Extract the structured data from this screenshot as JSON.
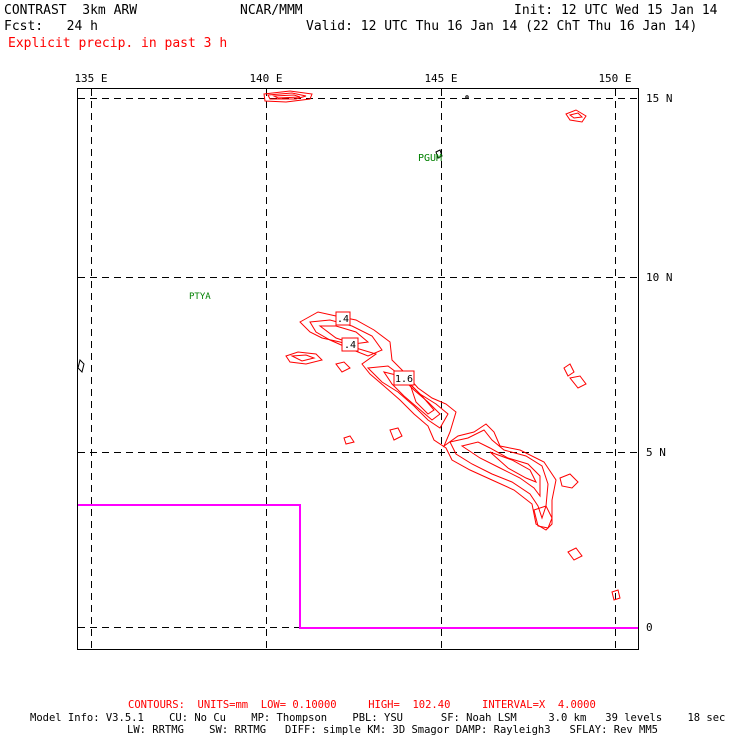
{
  "header": {
    "model": "CONTRAST  3km ARW",
    "org": "NCAR/MMM",
    "init": "Init: 12 UTC Wed 15 Jan 14",
    "fcst": "Fcst:   24 h",
    "valid": "Valid: 12 UTC Thu 16 Jan 14 (22 ChT Thu 16 Jan 14)",
    "field": "Explicit precip. in past 3 h"
  },
  "map": {
    "lon_labels": [
      "135 E",
      "140 E",
      "145 E",
      "150 E"
    ],
    "lat_labels": [
      "15 N",
      "10 N",
      "5 N",
      "0"
    ],
    "stations": [
      "PGUM",
      "PTYA"
    ],
    "contour_labels": [
      ".4",
      ".4",
      "1.6"
    ],
    "colors": {
      "contour": "#ff0000",
      "station": "#008000",
      "domain_boundary": "#ff00ff",
      "grid": "#000000"
    }
  },
  "footer": {
    "contours": "CONTOURS:  UNITS=mm  LOW= 0.10000     HIGH=  102.40     INTERVAL=X  4.0000",
    "model_info_1": "Model Info: V3.5.1    CU: No Cu    MP: Thompson    PBL: YSU      SF: Noah LSM     3.0 km   39 levels    18 sec",
    "model_info_2": "LW: RRTMG    SW: RRTMG   DIFF: simple KM: 3D Smagor DAMP: Rayleigh3   SFLAY: Rev MM5"
  }
}
